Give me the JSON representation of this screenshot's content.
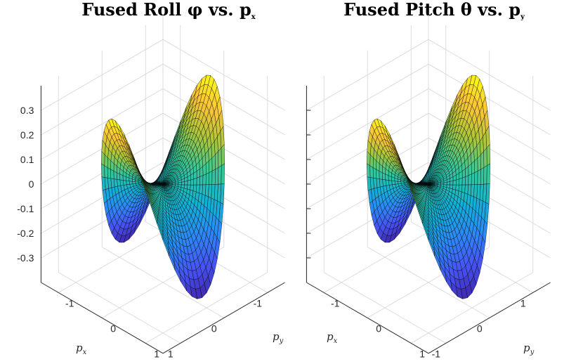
{
  "chart_data": [
    {
      "type": "surface",
      "title": "Fused Roll φ vs. p",
      "title_subscript": "x",
      "x_label": "p",
      "x_label_subscript": "x",
      "y_label": "p",
      "y_label_subscript": "y",
      "x_ticks": [
        "-1",
        "0",
        "1"
      ],
      "y_ticks": [
        "-1",
        "0",
        "1"
      ],
      "z_ticks": [
        "0.3",
        "0.2",
        "0.1",
        "0",
        "-0.1",
        "-0.2",
        "-0.3"
      ],
      "xlim": [
        -1.4,
        1.4
      ],
      "ylim": [
        -1.4,
        1.4
      ],
      "zlim": [
        -0.4,
        0.4
      ],
      "surface": {
        "function": "0.35 * r * r * cos(2*(theta + 0.12))",
        "radius": 1.0,
        "radial_rings": 20,
        "angular_spokes": 64
      },
      "colormap": "parula",
      "grid": true
    },
    {
      "type": "surface",
      "title": "Fused Pitch θ vs. p",
      "title_subscript": "y",
      "x_label": "p",
      "x_label_subscript": "x",
      "y_label": "p",
      "y_label_subscript": "y",
      "x_ticks": [
        "1",
        "0",
        "-1"
      ],
      "y_ticks": [
        "-1",
        "0",
        "1"
      ],
      "z_ticks": [],
      "xlim": [
        -1.4,
        1.4
      ],
      "ylim": [
        -1.4,
        1.4
      ],
      "zlim": [
        -0.4,
        0.4
      ],
      "surface": {
        "function": "0.35 * r * r * cos(2*(theta - 0.12))",
        "radius": 1.0,
        "radial_rings": 20,
        "angular_spokes": 64
      },
      "colormap": "parula",
      "grid": true
    }
  ]
}
